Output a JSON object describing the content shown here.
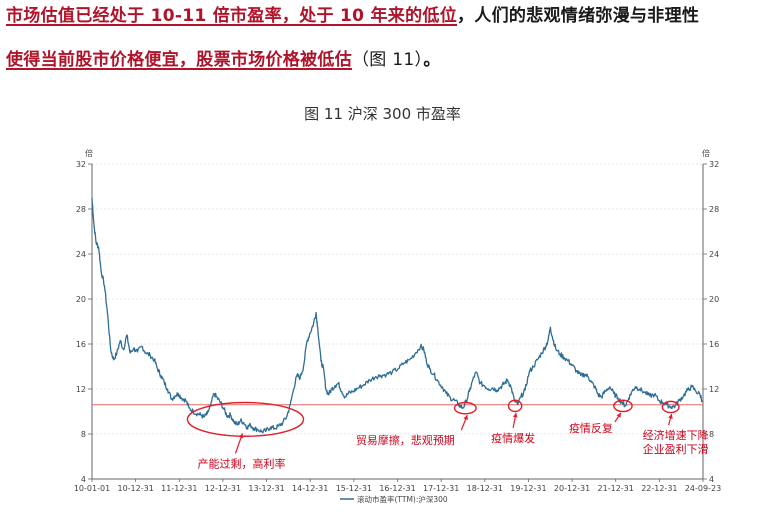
{
  "paragraph": {
    "line1_part1": "市场估值已经处于 10-11 倍市盈率，处于 10 年来的低位",
    "line1_part2": "，人们的悲观情绪弥漫与非理性",
    "line2_part1": "使得当前股市价格便宜，股票市场价格被低估",
    "line2_part2": "（图 11）",
    "line2_part3": "。"
  },
  "chart_data": {
    "type": "line",
    "title": "图 11  沪深 300 市盈率",
    "unit_left": "倍",
    "unit_right": "倍",
    "xlabel": "",
    "ylabel": "",
    "ylim": [
      4,
      32
    ],
    "yticks": [
      4,
      8,
      12,
      16,
      20,
      24,
      28,
      32
    ],
    "x_tick_labels": [
      "10-01-01",
      "10-12-31",
      "11-12-31",
      "12-12-31",
      "13-12-31",
      "14-12-31",
      "15-12-31",
      "16-12-31",
      "17-12-31",
      "18-12-31",
      "19-12-31",
      "20-12-31",
      "21-12-31",
      "22-12-31",
      "24-09-23"
    ],
    "reference_line": 10.6,
    "series": [
      {
        "name": "滚动市盈率(TTM):沪深300",
        "color": "#2e6e96",
        "points": [
          [
            2010.0,
            29.0
          ],
          [
            2010.05,
            26.5
          ],
          [
            2010.1,
            25.0
          ],
          [
            2010.16,
            24.6
          ],
          [
            2010.22,
            22.5
          ],
          [
            2010.3,
            21.2
          ],
          [
            2010.38,
            18.5
          ],
          [
            2010.45,
            15.5
          ],
          [
            2010.52,
            14.6
          ],
          [
            2010.6,
            15.2
          ],
          [
            2010.68,
            16.3
          ],
          [
            2010.76,
            15.5
          ],
          [
            2010.84,
            16.8
          ],
          [
            2010.92,
            15.2
          ],
          [
            2011.0,
            15.6
          ],
          [
            2011.1,
            15.3
          ],
          [
            2011.2,
            15.8
          ],
          [
            2011.3,
            15.2
          ],
          [
            2011.4,
            15.0
          ],
          [
            2011.5,
            14.6
          ],
          [
            2011.58,
            13.8
          ],
          [
            2011.66,
            13.2
          ],
          [
            2011.74,
            12.6
          ],
          [
            2011.82,
            12.0
          ],
          [
            2011.92,
            11.1
          ],
          [
            2012.0,
            11.4
          ],
          [
            2012.08,
            11.6
          ],
          [
            2012.16,
            11.2
          ],
          [
            2012.26,
            11.0
          ],
          [
            2012.34,
            10.3
          ],
          [
            2012.44,
            10.0
          ],
          [
            2012.54,
            9.8
          ],
          [
            2012.62,
            9.7
          ],
          [
            2012.7,
            9.5
          ],
          [
            2012.78,
            9.8
          ],
          [
            2012.86,
            10.5
          ],
          [
            2012.94,
            11.6
          ],
          [
            2013.02,
            11.2
          ],
          [
            2013.1,
            10.8
          ],
          [
            2013.18,
            10.2
          ],
          [
            2013.26,
            9.6
          ],
          [
            2013.34,
            9.7
          ],
          [
            2013.42,
            9.1
          ],
          [
            2013.5,
            8.8
          ],
          [
            2013.58,
            9.2
          ],
          [
            2013.66,
            9.0
          ],
          [
            2013.74,
            8.6
          ],
          [
            2013.82,
            8.8
          ],
          [
            2013.9,
            8.5
          ],
          [
            2014.0,
            8.4
          ],
          [
            2014.1,
            8.2
          ],
          [
            2014.2,
            8.3
          ],
          [
            2014.3,
            8.6
          ],
          [
            2014.4,
            8.5
          ],
          [
            2014.5,
            8.7
          ],
          [
            2014.6,
            9.0
          ],
          [
            2014.7,
            9.6
          ],
          [
            2014.78,
            10.6
          ],
          [
            2014.86,
            12.0
          ],
          [
            2014.94,
            13.2
          ],
          [
            2015.02,
            13.0
          ],
          [
            2015.1,
            14.0
          ],
          [
            2015.18,
            16.2
          ],
          [
            2015.26,
            17.0
          ],
          [
            2015.34,
            17.8
          ],
          [
            2015.4,
            18.8
          ],
          [
            2015.44,
            17.5
          ],
          [
            2015.52,
            14.5
          ],
          [
            2015.58,
            13.8
          ],
          [
            2015.64,
            12.0
          ],
          [
            2015.7,
            11.5
          ],
          [
            2015.78,
            12.0
          ],
          [
            2015.86,
            12.3
          ],
          [
            2015.94,
            12.5
          ],
          [
            2016.02,
            11.8
          ],
          [
            2016.1,
            11.3
          ],
          [
            2016.18,
            11.6
          ],
          [
            2016.3,
            11.8
          ],
          [
            2016.42,
            12.1
          ],
          [
            2016.56,
            12.4
          ],
          [
            2016.7,
            12.8
          ],
          [
            2016.84,
            13.1
          ],
          [
            2016.96,
            13.2
          ],
          [
            2017.1,
            13.3
          ],
          [
            2017.24,
            13.5
          ],
          [
            2017.38,
            13.8
          ],
          [
            2017.52,
            14.3
          ],
          [
            2017.66,
            14.6
          ],
          [
            2017.8,
            15.2
          ],
          [
            2017.92,
            15.8
          ],
          [
            2018.0,
            15.5
          ],
          [
            2018.06,
            14.5
          ],
          [
            2018.14,
            13.8
          ],
          [
            2018.24,
            13.3
          ],
          [
            2018.34,
            12.7
          ],
          [
            2018.44,
            12.2
          ],
          [
            2018.54,
            11.6
          ],
          [
            2018.64,
            11.2
          ],
          [
            2018.74,
            11.0
          ],
          [
            2018.84,
            10.6
          ],
          [
            2018.94,
            10.3
          ],
          [
            2019.02,
            10.9
          ],
          [
            2019.1,
            11.8
          ],
          [
            2019.18,
            12.8
          ],
          [
            2019.26,
            13.5
          ],
          [
            2019.36,
            12.5
          ],
          [
            2019.46,
            12.3
          ],
          [
            2019.56,
            12.0
          ],
          [
            2019.66,
            12.1
          ],
          [
            2019.76,
            11.9
          ],
          [
            2019.86,
            12.2
          ],
          [
            2019.94,
            12.5
          ],
          [
            2020.02,
            12.8
          ],
          [
            2020.1,
            12.2
          ],
          [
            2020.18,
            11.0
          ],
          [
            2020.26,
            10.6
          ],
          [
            2020.34,
            11.3
          ],
          [
            2020.44,
            11.9
          ],
          [
            2020.54,
            13.5
          ],
          [
            2020.64,
            14.0
          ],
          [
            2020.74,
            14.6
          ],
          [
            2020.84,
            15.2
          ],
          [
            2020.94,
            15.8
          ],
          [
            2021.0,
            16.4
          ],
          [
            2021.05,
            17.5
          ],
          [
            2021.1,
            16.6
          ],
          [
            2021.18,
            15.6
          ],
          [
            2021.28,
            15.1
          ],
          [
            2021.38,
            14.8
          ],
          [
            2021.48,
            14.5
          ],
          [
            2021.58,
            14.1
          ],
          [
            2021.68,
            13.6
          ],
          [
            2021.78,
            13.2
          ],
          [
            2021.88,
            13.3
          ],
          [
            2021.96,
            13.1
          ],
          [
            2022.04,
            12.6
          ],
          [
            2022.12,
            12.2
          ],
          [
            2022.2,
            11.5
          ],
          [
            2022.28,
            11.3
          ],
          [
            2022.38,
            11.8
          ],
          [
            2022.48,
            12.2
          ],
          [
            2022.58,
            11.6
          ],
          [
            2022.68,
            11.2
          ],
          [
            2022.78,
            10.8
          ],
          [
            2022.86,
            10.5
          ],
          [
            2022.94,
            11.2
          ],
          [
            2023.02,
            11.8
          ],
          [
            2023.1,
            12.2
          ],
          [
            2023.2,
            12.0
          ],
          [
            2023.32,
            11.7
          ],
          [
            2023.44,
            11.4
          ],
          [
            2023.56,
            11.5
          ],
          [
            2023.66,
            11.0
          ],
          [
            2023.76,
            10.8
          ],
          [
            2023.86,
            10.6
          ],
          [
            2023.96,
            10.4
          ],
          [
            2024.06,
            10.5
          ],
          [
            2024.16,
            11.0
          ],
          [
            2024.26,
            11.4
          ],
          [
            2024.36,
            11.9
          ],
          [
            2024.46,
            12.2
          ],
          [
            2024.56,
            11.8
          ],
          [
            2024.66,
            11.5
          ],
          [
            2024.72,
            10.9
          ]
        ]
      }
    ],
    "annotations": [
      {
        "label": "产能过剩，高利率",
        "cx": 2013.7,
        "cy": 9.3,
        "rx": 1.4,
        "ry": 1.5
      },
      {
        "label": "贸易摩擦，悲观预期",
        "cx": 2019.0,
        "cy": 10.3,
        "rx": 0.26,
        "ry": 0.5
      },
      {
        "label": "疫情爆发",
        "cx": 2020.2,
        "cy": 10.5,
        "rx": 0.16,
        "ry": 0.5
      },
      {
        "label": "疫情反复",
        "cx": 2022.8,
        "cy": 10.5,
        "rx": 0.22,
        "ry": 0.5
      },
      {
        "label1": "经济增速下降",
        "label2": "企业盈利下滑",
        "cx": 2023.95,
        "cy": 10.4,
        "rx": 0.2,
        "ry": 0.5
      }
    ]
  }
}
